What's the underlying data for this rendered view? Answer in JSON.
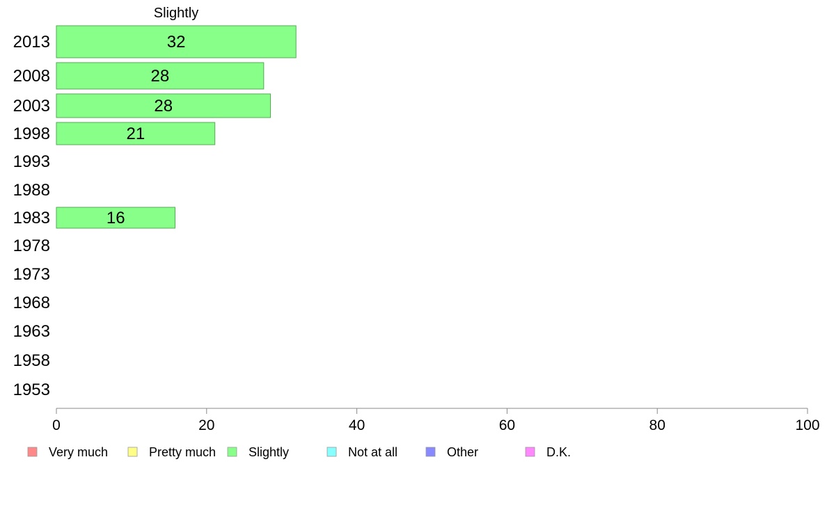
{
  "chart_data": {
    "type": "bar",
    "orientation": "horizontal",
    "title": "Slightly",
    "categories": [
      "2013",
      "2008",
      "2003",
      "1998",
      "1993",
      "1988",
      "1983",
      "1978",
      "1973",
      "1968",
      "1963",
      "1958",
      "1953"
    ],
    "series": [
      {
        "name": "Slightly",
        "color": "#88ff88",
        "values": [
          32,
          28,
          28,
          21,
          null,
          null,
          16,
          null,
          null,
          null,
          null,
          null,
          null
        ],
        "display_values": [
          31.9,
          27.6,
          28.5,
          21.1,
          null,
          null,
          15.8,
          null,
          null,
          null,
          null,
          null,
          null
        ]
      }
    ],
    "xlim": [
      0,
      100
    ],
    "xticks": [
      "0",
      "20",
      "40",
      "60",
      "80",
      "100"
    ],
    "grid": false,
    "legend": {
      "position": "bottom",
      "items": [
        {
          "label": "Very much",
          "color": "#ff8888"
        },
        {
          "label": "Pretty much",
          "color": "#ffff88"
        },
        {
          "label": "Slightly",
          "color": "#88ff88"
        },
        {
          "label": "Not at all",
          "color": "#88ffff"
        },
        {
          "label": "Other",
          "color": "#8888ff"
        },
        {
          "label": "D.K.",
          "color": "#ff88ff"
        }
      ]
    }
  }
}
